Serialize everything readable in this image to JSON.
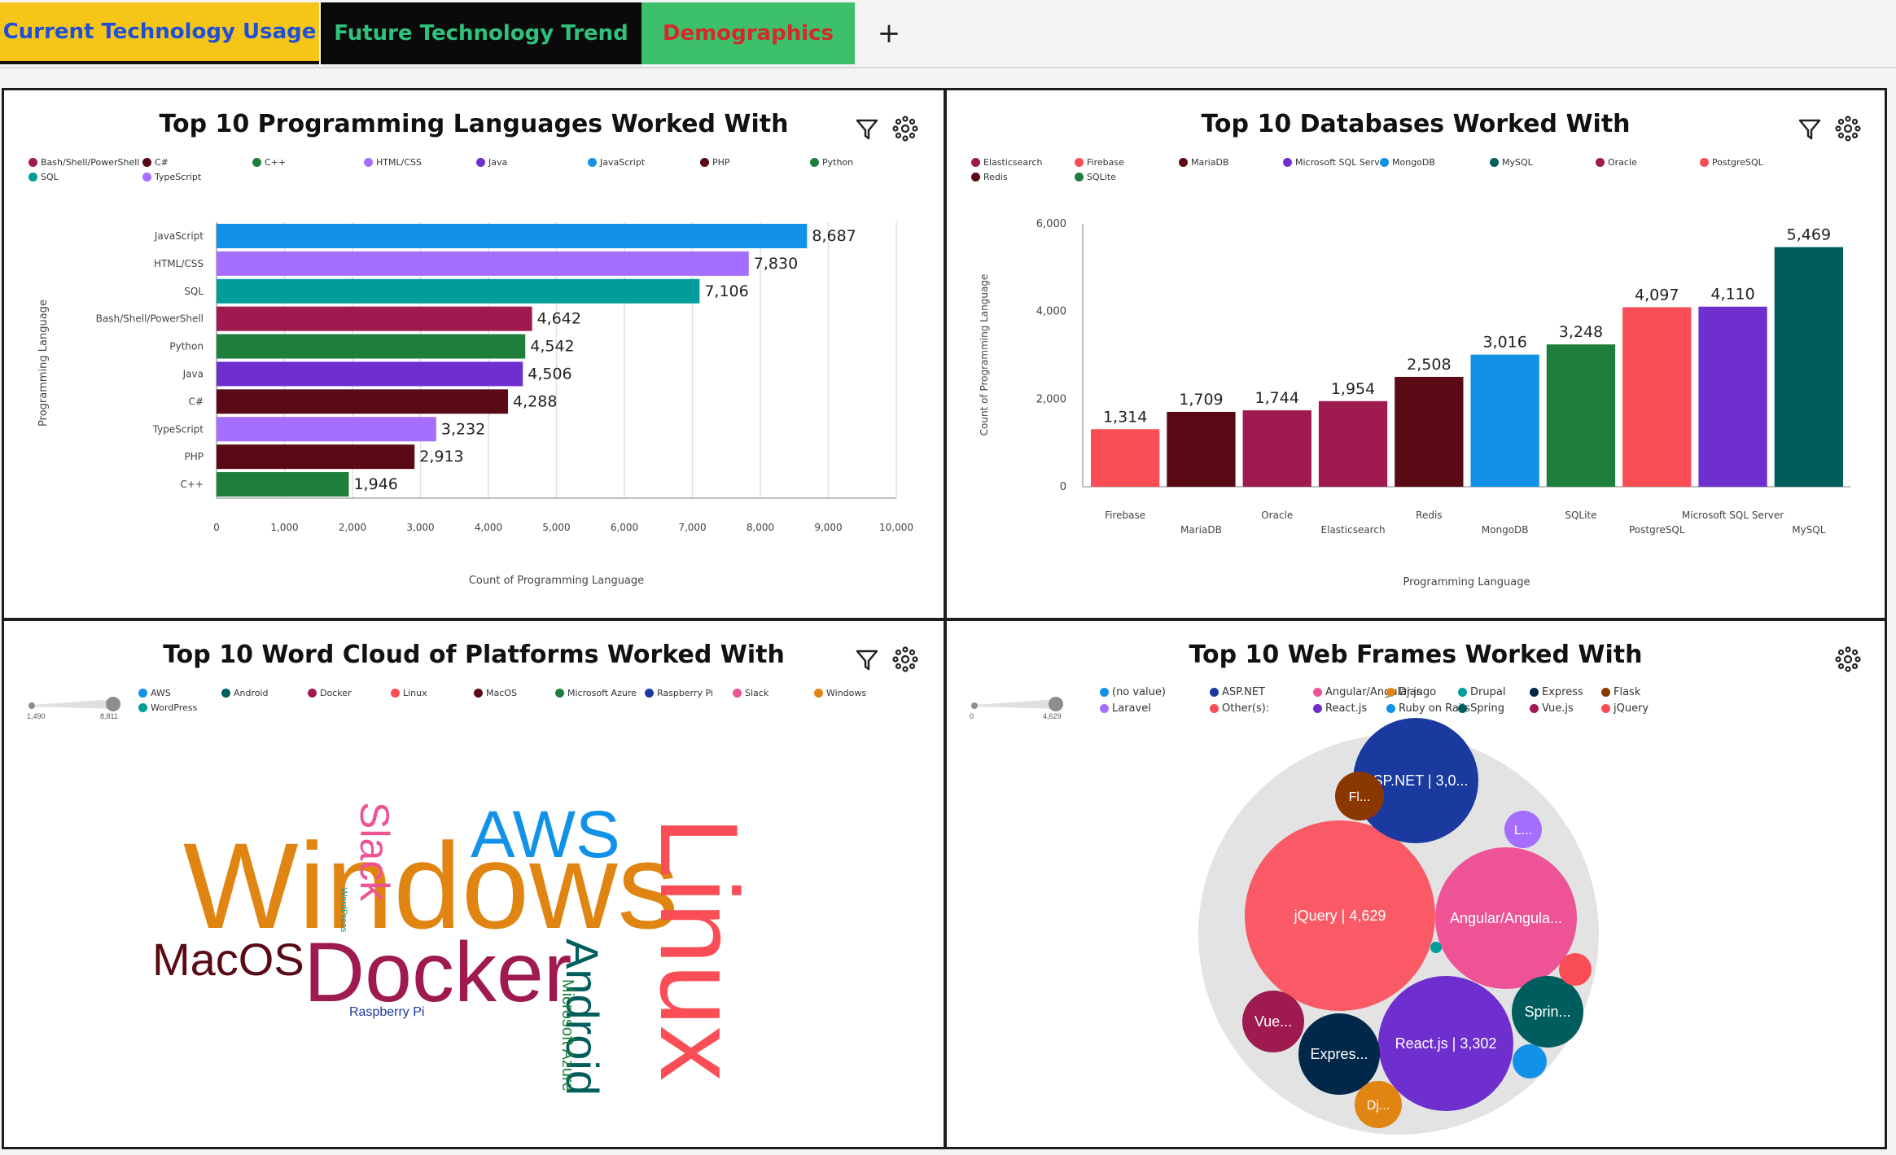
{
  "tabs": [
    {
      "label": "Current Technology Usage",
      "bg": "#f5c518",
      "color": "#1f4fd8",
      "active": true
    },
    {
      "label": "Future Technology Trend",
      "bg": "#0a0a0a",
      "color": "#2ec27e",
      "active": false
    },
    {
      "label": "Demographics",
      "bg": "#3cc06a",
      "color": "#d42a2a",
      "active": false
    }
  ],
  "add_tab_label": "+",
  "panels": {
    "languages": {
      "title": "Top 10 Programming Languages Worked With",
      "legend": [
        {
          "label": "Bash/Shell/PowerShell",
          "color": "#9e1a4f"
        },
        {
          "label": "C#",
          "color": "#5a0a14"
        },
        {
          "label": "C++",
          "color": "#1e7f3c"
        },
        {
          "label": "HTML/CSS",
          "color": "#a56eff"
        },
        {
          "label": "Java",
          "color": "#6f2fcf"
        },
        {
          "label": "JavaScript",
          "color": "#1192e8"
        },
        {
          "label": "PHP",
          "color": "#5a0a14"
        },
        {
          "label": "Python",
          "color": "#1e7f3c"
        },
        {
          "label": "SQL",
          "color": "#009d9a"
        },
        {
          "label": "TypeScript",
          "color": "#a56eff"
        }
      ]
    },
    "databases": {
      "title": "Top 10 Databases Worked With",
      "legend": [
        {
          "label": "Elasticsearch",
          "color": "#9e1a4f"
        },
        {
          "label": "Firebase",
          "color": "#fa4d56"
        },
        {
          "label": "MariaDB",
          "color": "#5a0a14"
        },
        {
          "label": "Microsoft SQL Server",
          "color": "#6f2fcf"
        },
        {
          "label": "MongoDB",
          "color": "#1192e8"
        },
        {
          "label": "MySQL",
          "color": "#005d5d"
        },
        {
          "label": "Oracle",
          "color": "#9e1a4f"
        },
        {
          "label": "PostgreSQL",
          "color": "#fa4d56"
        },
        {
          "label": "Redis",
          "color": "#5a0a14"
        },
        {
          "label": "SQLite",
          "color": "#1e7f3c"
        }
      ]
    },
    "platforms": {
      "title": "Top 10 Word Cloud of Platforms Worked With",
      "slider_min": "1,490",
      "slider_max": "8,811",
      "legend": [
        {
          "label": "AWS",
          "color": "#1192e8"
        },
        {
          "label": "Android",
          "color": "#005d5d"
        },
        {
          "label": "Docker",
          "color": "#9e1a4f"
        },
        {
          "label": "Linux",
          "color": "#fa4d56"
        },
        {
          "label": "MacOS",
          "color": "#5a0a14"
        },
        {
          "label": "Microsoft Azure",
          "color": "#1e7f3c"
        },
        {
          "label": "Raspberry Pi",
          "color": "#1a3aa0"
        },
        {
          "label": "Slack",
          "color": "#ee5396"
        },
        {
          "label": "Windows",
          "color": "#e08412"
        },
        {
          "label": "WordPress",
          "color": "#009d9a"
        }
      ],
      "words": [
        {
          "text": "Windows",
          "color": "#e08412"
        },
        {
          "text": "Linux",
          "color": "#fa4d56"
        },
        {
          "text": "Docker",
          "color": "#9e1a4f"
        },
        {
          "text": "AWS",
          "color": "#1192e8"
        },
        {
          "text": "Slack",
          "color": "#ee5396"
        },
        {
          "text": "MacOS",
          "color": "#5a0a14"
        },
        {
          "text": "Android",
          "color": "#005d5d"
        },
        {
          "text": "Microsoft Azure",
          "color": "#1e7f3c"
        },
        {
          "text": "Raspberry Pi",
          "color": "#1a3aa0"
        },
        {
          "text": "WordPress",
          "color": "#009d9a"
        }
      ]
    },
    "webframes": {
      "title": "Top 10 Web Frames Worked With",
      "slider_min": "0",
      "slider_max": "4,629",
      "legend": [
        {
          "label": "(no value)",
          "color": "#1192e8"
        },
        {
          "label": "ASP.NET",
          "color": "#1a3aa0"
        },
        {
          "label": "Angular/Angular.js",
          "color": "#ee5396"
        },
        {
          "label": "Django",
          "color": "#e08412"
        },
        {
          "label": "Drupal",
          "color": "#009d9a"
        },
        {
          "label": "Express",
          "color": "#012749"
        },
        {
          "label": "Flask",
          "color": "#8a3800"
        },
        {
          "label": "Laravel",
          "color": "#a56eff"
        },
        {
          "label": "Other(s):",
          "color": "#fa4d56"
        },
        {
          "label": "React.js",
          "color": "#6f2fcf"
        },
        {
          "label": "Ruby on Rails",
          "color": "#1192e8"
        },
        {
          "label": "Spring",
          "color": "#005d5d"
        },
        {
          "label": "Vue.js",
          "color": "#9e1a4f"
        },
        {
          "label": "jQuery",
          "color": "#fa4d56"
        }
      ],
      "bubbles": [
        {
          "label": "jQuery | 4,629",
          "color": "#fa5a65"
        },
        {
          "label": "ASP.NET | 3,0...",
          "color": "#1a3aa0"
        },
        {
          "label": "Angular/Angula...",
          "color": "#ee5396"
        },
        {
          "label": "React.js | 3,302",
          "color": "#6f2fcf"
        },
        {
          "label": "Sprin...",
          "color": "#005d5d"
        },
        {
          "label": "Expres...",
          "color": "#012749"
        },
        {
          "label": "Vue...",
          "color": "#9e1a4f"
        },
        {
          "label": "Fl...",
          "color": "#8a3800"
        },
        {
          "label": "L...",
          "color": "#a56eff"
        },
        {
          "label": "Dj...",
          "color": "#e08412"
        },
        {
          "label": "",
          "color": "#fa4d56"
        },
        {
          "label": "",
          "color": "#1192e8"
        },
        {
          "label": "",
          "color": "#009d9a"
        }
      ]
    }
  },
  "chart_data": [
    {
      "type": "bar",
      "orientation": "horizontal",
      "title": "Top 10 Programming Languages Worked With",
      "xlabel": "Count of Programming Language",
      "ylabel": "Programming Language",
      "categories": [
        "JavaScript",
        "HTML/CSS",
        "SQL",
        "Bash/Shell/PowerShell",
        "Python",
        "Java",
        "C#",
        "TypeScript",
        "PHP",
        "C++"
      ],
      "values": [
        8687,
        7830,
        7106,
        4642,
        4542,
        4506,
        4288,
        3232,
        2913,
        1946
      ],
      "value_labels": [
        "8,687",
        "7,830",
        "7,106",
        "4,642",
        "4,542",
        "4,506",
        "4,288",
        "3,232",
        "2,913",
        "1,946"
      ],
      "colors": [
        "#1192e8",
        "#a56eff",
        "#009d9a",
        "#9e1a4f",
        "#1e7f3c",
        "#6f2fcf",
        "#5a0a14",
        "#a56eff",
        "#5a0a14",
        "#1e7f3c"
      ],
      "xlim": [
        0,
        10000
      ],
      "xticks": [
        "0",
        "1,000",
        "2,000",
        "3,000",
        "4,000",
        "5,000",
        "6,000",
        "7,000",
        "8,000",
        "9,000",
        "10,000"
      ],
      "grid": true
    },
    {
      "type": "bar",
      "orientation": "vertical",
      "title": "Top 10 Databases Worked With",
      "xlabel": "Programming Language",
      "ylabel": "Count of Programming Language",
      "categories": [
        "Firebase",
        "MariaDB",
        "Oracle",
        "Elasticsearch",
        "Redis",
        "MongoDB",
        "SQLite",
        "PostgreSQL",
        "Microsoft SQL Server",
        "MySQL"
      ],
      "values": [
        1314,
        1709,
        1744,
        1954,
        2508,
        3016,
        3248,
        4097,
        4110,
        5469
      ],
      "value_labels": [
        "1,314",
        "1,709",
        "1,744",
        "1,954",
        "2,508",
        "3,016",
        "3,248",
        "4,097",
        "4,110",
        "5,469"
      ],
      "colors": [
        "#fa4d56",
        "#5a0a14",
        "#9e1a4f",
        "#9e1a4f",
        "#5a0a14",
        "#1192e8",
        "#1e7f3c",
        "#fa4d56",
        "#6f2fcf",
        "#005d5d"
      ],
      "ylim": [
        0,
        6000
      ],
      "yticks": [
        "0",
        "2,000",
        "4,000",
        "6,000"
      ],
      "grid": false
    }
  ]
}
